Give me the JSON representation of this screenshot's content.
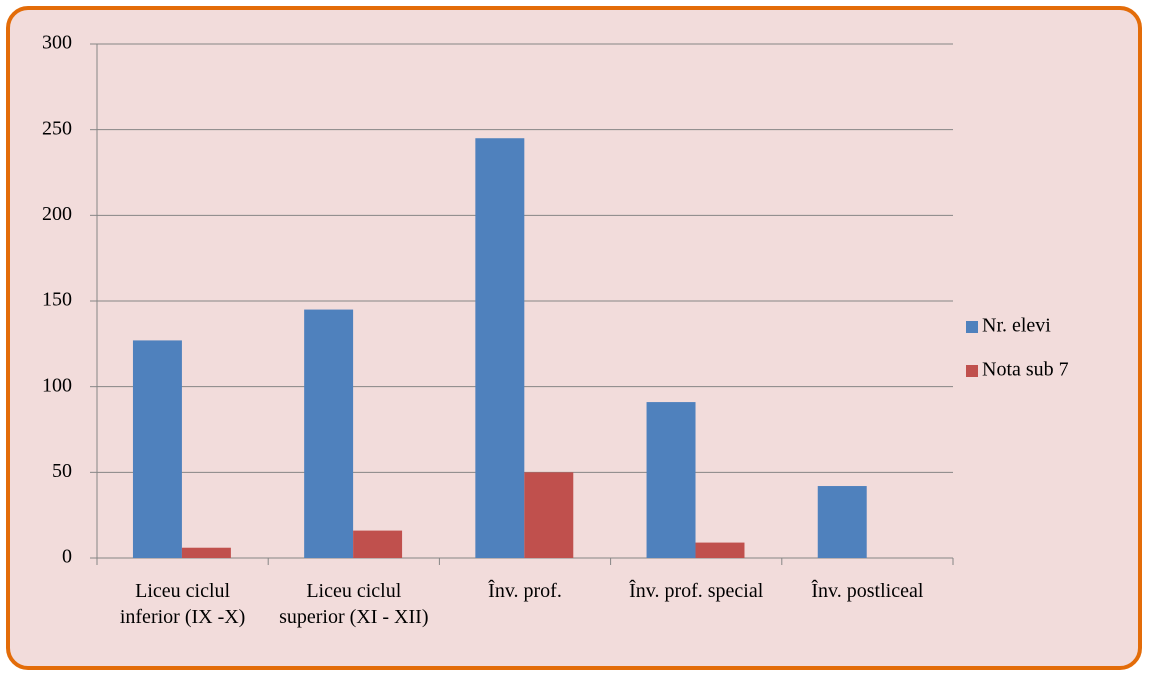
{
  "chart_data": {
    "type": "bar",
    "categories": [
      "Liceu ciclul inferior (IX -X)",
      "Liceu ciclul superior (XI - XII)",
      "Înv. prof.",
      "Înv. prof. special",
      "Înv. postliceal"
    ],
    "series": [
      {
        "name": "Nr. elevi",
        "color": "#4f81bd",
        "values": [
          127,
          145,
          245,
          91,
          42
        ]
      },
      {
        "name": "Nota sub 7",
        "color": "#c0504d",
        "values": [
          6,
          16,
          50,
          9,
          0
        ]
      }
    ],
    "ylim": [
      0,
      300
    ],
    "yticks": [
      0,
      50,
      100,
      150,
      200,
      250,
      300
    ],
    "grid": true,
    "legend": "right"
  }
}
